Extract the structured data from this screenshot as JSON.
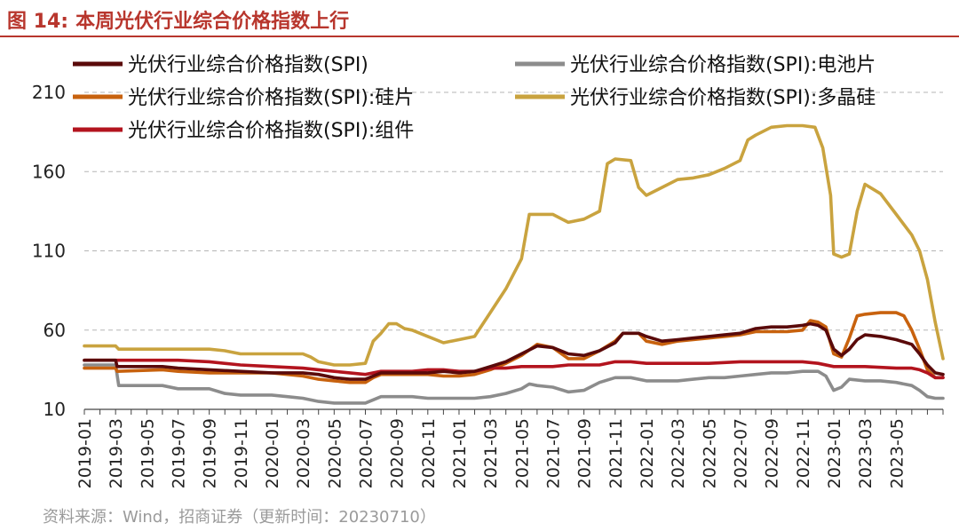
{
  "figure": {
    "number": "图 14:",
    "title": "本周光伏行业综合价格指数上行",
    "source": "资料来源：Wind，招商证券（更新时间：20230710）"
  },
  "chart_data": {
    "type": "line",
    "ylim": [
      10,
      210
    ],
    "yticks": [
      10,
      60,
      110,
      160,
      210
    ],
    "grid": true,
    "legend_position": "top",
    "x_labels": [
      "2019-01",
      "2019-03",
      "2019-05",
      "2019-07",
      "2019-09",
      "2019-11",
      "2020-01",
      "2020-03",
      "2020-05",
      "2020-07",
      "2020-09",
      "2020-11",
      "2021-01",
      "2021-03",
      "2021-05",
      "2021-07",
      "2021-09",
      "2021-11",
      "2022-01",
      "2022-03",
      "2022-05",
      "2022-07",
      "2022-09",
      "2022-11",
      "2023-01",
      "2023-03",
      "2023-05"
    ],
    "x_months": [
      0,
      2,
      4,
      6,
      8,
      10,
      12,
      14,
      16,
      18,
      20,
      22,
      24,
      26,
      28,
      30,
      32,
      34,
      36,
      38,
      40,
      42,
      44,
      46,
      48,
      50,
      52
    ],
    "series": [
      {
        "name": "光伏行业综合价格指数(SPI)",
        "color": "#5a0a0a",
        "points": [
          [
            0,
            41
          ],
          [
            2,
            41
          ],
          [
            2.1,
            37
          ],
          [
            5,
            37
          ],
          [
            6,
            36
          ],
          [
            8,
            35
          ],
          [
            10,
            34
          ],
          [
            12,
            33
          ],
          [
            14,
            33
          ],
          [
            15,
            32
          ],
          [
            16,
            30
          ],
          [
            17,
            29
          ],
          [
            18,
            29
          ],
          [
            18.5,
            31
          ],
          [
            19,
            33
          ],
          [
            21,
            33
          ],
          [
            22,
            33
          ],
          [
            23,
            34
          ],
          [
            24,
            33
          ],
          [
            25,
            34
          ],
          [
            26,
            37
          ],
          [
            27,
            40
          ],
          [
            28,
            45
          ],
          [
            29,
            50
          ],
          [
            30,
            49
          ],
          [
            31,
            45
          ],
          [
            32,
            44
          ],
          [
            33,
            47
          ],
          [
            34,
            52
          ],
          [
            34.5,
            58
          ],
          [
            35.5,
            58
          ],
          [
            36,
            56
          ],
          [
            37,
            53
          ],
          [
            38,
            54
          ],
          [
            39,
            55
          ],
          [
            40,
            56
          ],
          [
            41,
            57
          ],
          [
            42,
            58
          ],
          [
            43,
            61
          ],
          [
            44,
            62
          ],
          [
            45,
            62
          ],
          [
            46,
            63
          ],
          [
            46.5,
            64
          ],
          [
            47,
            63
          ],
          [
            47.5,
            60
          ],
          [
            48,
            48
          ],
          [
            48.5,
            44
          ],
          [
            49,
            48
          ],
          [
            49.5,
            54
          ],
          [
            50,
            57
          ],
          [
            51,
            56
          ],
          [
            52,
            54
          ],
          [
            53,
            51
          ],
          [
            53.5,
            45
          ],
          [
            54,
            38
          ],
          [
            54.5,
            33
          ],
          [
            55,
            32
          ]
        ]
      },
      {
        "name": "光伏行业综合价格指数(SPI):电池片",
        "color": "#8c8c8c",
        "points": [
          [
            0,
            38
          ],
          [
            2,
            38
          ],
          [
            2.2,
            25
          ],
          [
            5,
            25
          ],
          [
            6,
            23
          ],
          [
            8,
            23
          ],
          [
            9,
            20
          ],
          [
            10,
            19
          ],
          [
            12,
            19
          ],
          [
            13,
            18
          ],
          [
            14,
            17
          ],
          [
            15,
            15
          ],
          [
            16,
            14
          ],
          [
            17,
            14
          ],
          [
            18,
            14
          ],
          [
            18.5,
            16
          ],
          [
            19,
            18
          ],
          [
            21,
            18
          ],
          [
            22,
            17
          ],
          [
            24,
            17
          ],
          [
            25,
            17
          ],
          [
            26,
            18
          ],
          [
            27,
            20
          ],
          [
            28,
            23
          ],
          [
            28.5,
            26
          ],
          [
            29,
            25
          ],
          [
            30,
            24
          ],
          [
            31,
            21
          ],
          [
            32,
            22
          ],
          [
            33,
            27
          ],
          [
            34,
            30
          ],
          [
            35,
            30
          ],
          [
            36,
            28
          ],
          [
            37,
            28
          ],
          [
            38,
            28
          ],
          [
            39,
            29
          ],
          [
            40,
            30
          ],
          [
            41,
            30
          ],
          [
            42,
            31
          ],
          [
            43,
            32
          ],
          [
            44,
            33
          ],
          [
            45,
            33
          ],
          [
            46,
            34
          ],
          [
            47,
            34
          ],
          [
            47.5,
            31
          ],
          [
            48,
            22
          ],
          [
            48.5,
            24
          ],
          [
            49,
            29
          ],
          [
            50,
            28
          ],
          [
            51,
            28
          ],
          [
            52,
            27
          ],
          [
            53,
            25
          ],
          [
            53.5,
            22
          ],
          [
            54,
            18
          ],
          [
            54.5,
            17
          ],
          [
            55,
            17
          ]
        ]
      },
      {
        "name": "光伏行业综合价格指数(SPI):硅片",
        "color": "#c8620e",
        "points": [
          [
            0,
            36
          ],
          [
            2,
            36
          ],
          [
            2.1,
            34
          ],
          [
            5,
            35
          ],
          [
            6,
            34
          ],
          [
            8,
            33
          ],
          [
            10,
            33
          ],
          [
            12,
            33
          ],
          [
            14,
            31
          ],
          [
            15,
            29
          ],
          [
            16,
            28
          ],
          [
            17,
            27
          ],
          [
            18,
            27
          ],
          [
            18.5,
            30
          ],
          [
            19,
            32
          ],
          [
            21,
            32
          ],
          [
            22,
            32
          ],
          [
            23,
            31
          ],
          [
            24,
            31
          ],
          [
            25,
            32
          ],
          [
            26,
            35
          ],
          [
            27,
            39
          ],
          [
            28,
            44
          ],
          [
            29,
            51
          ],
          [
            30,
            49
          ],
          [
            31,
            42
          ],
          [
            32,
            42
          ],
          [
            33,
            47
          ],
          [
            34,
            53
          ],
          [
            34.5,
            58
          ],
          [
            35.5,
            58
          ],
          [
            36,
            53
          ],
          [
            37,
            51
          ],
          [
            38,
            53
          ],
          [
            39,
            54
          ],
          [
            40,
            55
          ],
          [
            41,
            56
          ],
          [
            42,
            57
          ],
          [
            43,
            59
          ],
          [
            44,
            59
          ],
          [
            45,
            59
          ],
          [
            46,
            60
          ],
          [
            46.5,
            66
          ],
          [
            47,
            65
          ],
          [
            47.5,
            62
          ],
          [
            48,
            45
          ],
          [
            48.5,
            43
          ],
          [
            49,
            55
          ],
          [
            49.5,
            69
          ],
          [
            50,
            70
          ],
          [
            51,
            71
          ],
          [
            52,
            71
          ],
          [
            52.5,
            69
          ],
          [
            53,
            60
          ],
          [
            53.5,
            48
          ],
          [
            54,
            35
          ],
          [
            54.5,
            30
          ],
          [
            55,
            30
          ]
        ]
      },
      {
        "name": "光伏行业综合价格指数(SPI):多晶硅",
        "color": "#c9a33f",
        "points": [
          [
            0,
            50
          ],
          [
            2,
            50
          ],
          [
            2.2,
            48
          ],
          [
            5,
            48
          ],
          [
            6,
            48
          ],
          [
            8,
            48
          ],
          [
            9,
            47
          ],
          [
            10,
            45
          ],
          [
            12,
            45
          ],
          [
            14,
            45
          ],
          [
            14.5,
            43
          ],
          [
            15,
            40
          ],
          [
            16,
            38
          ],
          [
            17,
            38
          ],
          [
            18,
            39
          ],
          [
            18.5,
            53
          ],
          [
            19,
            58
          ],
          [
            19.5,
            64
          ],
          [
            20,
            64
          ],
          [
            20.5,
            61
          ],
          [
            21,
            60
          ],
          [
            22,
            56
          ],
          [
            23,
            52
          ],
          [
            24,
            54
          ],
          [
            25,
            56
          ],
          [
            26,
            71
          ],
          [
            27,
            86
          ],
          [
            28,
            105
          ],
          [
            28.5,
            133
          ],
          [
            30,
            133
          ],
          [
            31,
            128
          ],
          [
            32,
            130
          ],
          [
            33,
            135
          ],
          [
            33.5,
            165
          ],
          [
            34,
            168
          ],
          [
            35,
            167
          ],
          [
            35.5,
            150
          ],
          [
            36,
            145
          ],
          [
            37,
            150
          ],
          [
            38,
            155
          ],
          [
            39,
            156
          ],
          [
            40,
            158
          ],
          [
            41,
            162
          ],
          [
            42,
            167
          ],
          [
            42.5,
            180
          ],
          [
            43,
            183
          ],
          [
            44,
            188
          ],
          [
            45,
            189
          ],
          [
            46,
            189
          ],
          [
            46.8,
            188
          ],
          [
            47.3,
            175
          ],
          [
            47.8,
            145
          ],
          [
            48,
            108
          ],
          [
            48.5,
            106
          ],
          [
            49,
            108
          ],
          [
            49.5,
            135
          ],
          [
            50,
            152
          ],
          [
            51,
            146
          ],
          [
            52,
            133
          ],
          [
            53,
            120
          ],
          [
            53.5,
            110
          ],
          [
            54,
            92
          ],
          [
            54.5,
            65
          ],
          [
            55,
            42
          ]
        ]
      },
      {
        "name": "光伏行业综合价格指数(SPI):组件",
        "color": "#b3141e",
        "points": [
          [
            0,
            41
          ],
          [
            2,
            41
          ],
          [
            4,
            41
          ],
          [
            6,
            41
          ],
          [
            8,
            40
          ],
          [
            10,
            38
          ],
          [
            12,
            37
          ],
          [
            14,
            36
          ],
          [
            15,
            35
          ],
          [
            16,
            34
          ],
          [
            17,
            33
          ],
          [
            18,
            32
          ],
          [
            19,
            34
          ],
          [
            20,
            34
          ],
          [
            21,
            34
          ],
          [
            22,
            35
          ],
          [
            23,
            35
          ],
          [
            24,
            34
          ],
          [
            25,
            34
          ],
          [
            26,
            36
          ],
          [
            27,
            36
          ],
          [
            28,
            37
          ],
          [
            29,
            37
          ],
          [
            30,
            37
          ],
          [
            31,
            38
          ],
          [
            32,
            38
          ],
          [
            33,
            38
          ],
          [
            34,
            40
          ],
          [
            35,
            40
          ],
          [
            36,
            39
          ],
          [
            38,
            39
          ],
          [
            40,
            39
          ],
          [
            42,
            40
          ],
          [
            44,
            40
          ],
          [
            46,
            40
          ],
          [
            47,
            39
          ],
          [
            48,
            37
          ],
          [
            50,
            37
          ],
          [
            52,
            36
          ],
          [
            53,
            36
          ],
          [
            53.5,
            35
          ],
          [
            54,
            33
          ],
          [
            54.5,
            30
          ],
          [
            55,
            30
          ]
        ]
      }
    ]
  }
}
